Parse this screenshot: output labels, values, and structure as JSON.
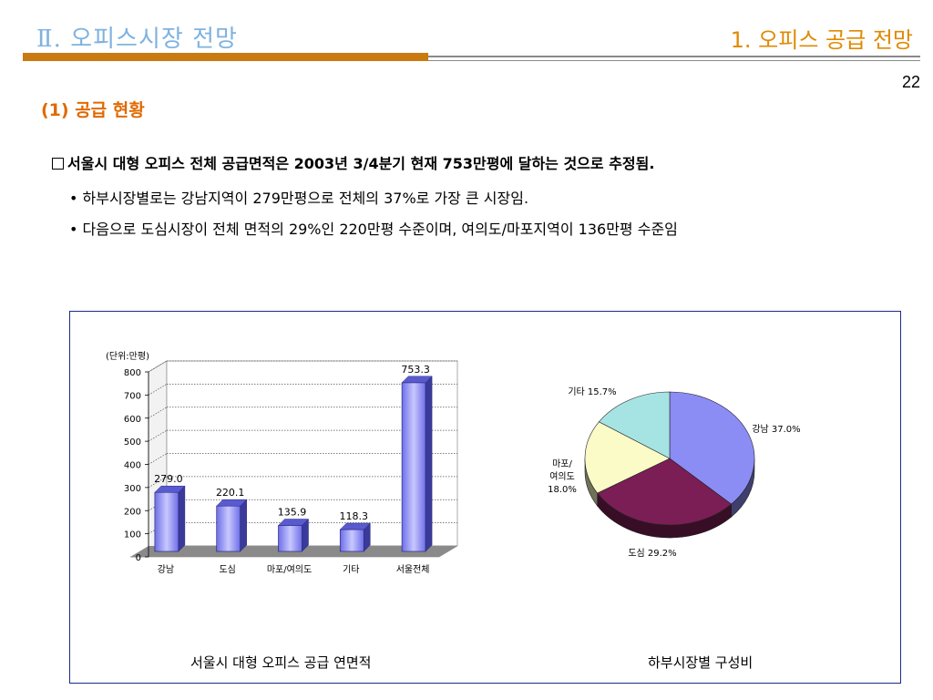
{
  "header": {
    "title_left": "Ⅱ. 오피스시장 전망",
    "title_right": "1. 오피스 공급 전망",
    "page_number": "22"
  },
  "section": {
    "heading": "(1) 공급 현황",
    "main_bullet": "서울시 대형 오피스 전체 공급면적은 2003년 3/4분기 현재 753만평에 달하는 것으로 추정됨.",
    "sub_bullets": [
      "• 하부시장별로는 강남지역이 279만평으로 전체의 37%로 가장 큰 시장임.",
      "• 다음으로 도심시장이 전체 면적의 29%인 220만평 수준이며, 여의도/마포지역이 136만평 수준임"
    ]
  },
  "captions": {
    "bar": "서울시 대형 오피스 공급 연면적",
    "pie": "하부시장별 구성비"
  },
  "chart_data": [
    {
      "type": "bar",
      "unit_label": "(단위:만평)",
      "categories": [
        "강남",
        "도심",
        "마포/여의도",
        "기타",
        "서울전체"
      ],
      "values": [
        279.0,
        220.1,
        135.9,
        118.3,
        753.3
      ],
      "value_labels": [
        "279.0",
        "220.1",
        "135.9",
        "118.3",
        "753.3"
      ],
      "y_ticks": [
        "0",
        "100",
        "200",
        "300",
        "400",
        "500",
        "600",
        "700",
        "800"
      ],
      "ylim": [
        0,
        800
      ],
      "grid": true,
      "bar_color": "#7c7cf0"
    },
    {
      "type": "pie",
      "slices": [
        {
          "label": "강남 37.0%",
          "value": 37.0,
          "color": "#8c8cf5"
        },
        {
          "label": "도심 29.2%",
          "value": 29.2,
          "color": "#7a1e55"
        },
        {
          "label": "마포/\n여의도\n18.0%",
          "value": 18.0,
          "color": "#fbfbc8"
        },
        {
          "label": "기타 15.7%",
          "value": 15.7,
          "color": "#a6e4e4"
        }
      ]
    }
  ]
}
